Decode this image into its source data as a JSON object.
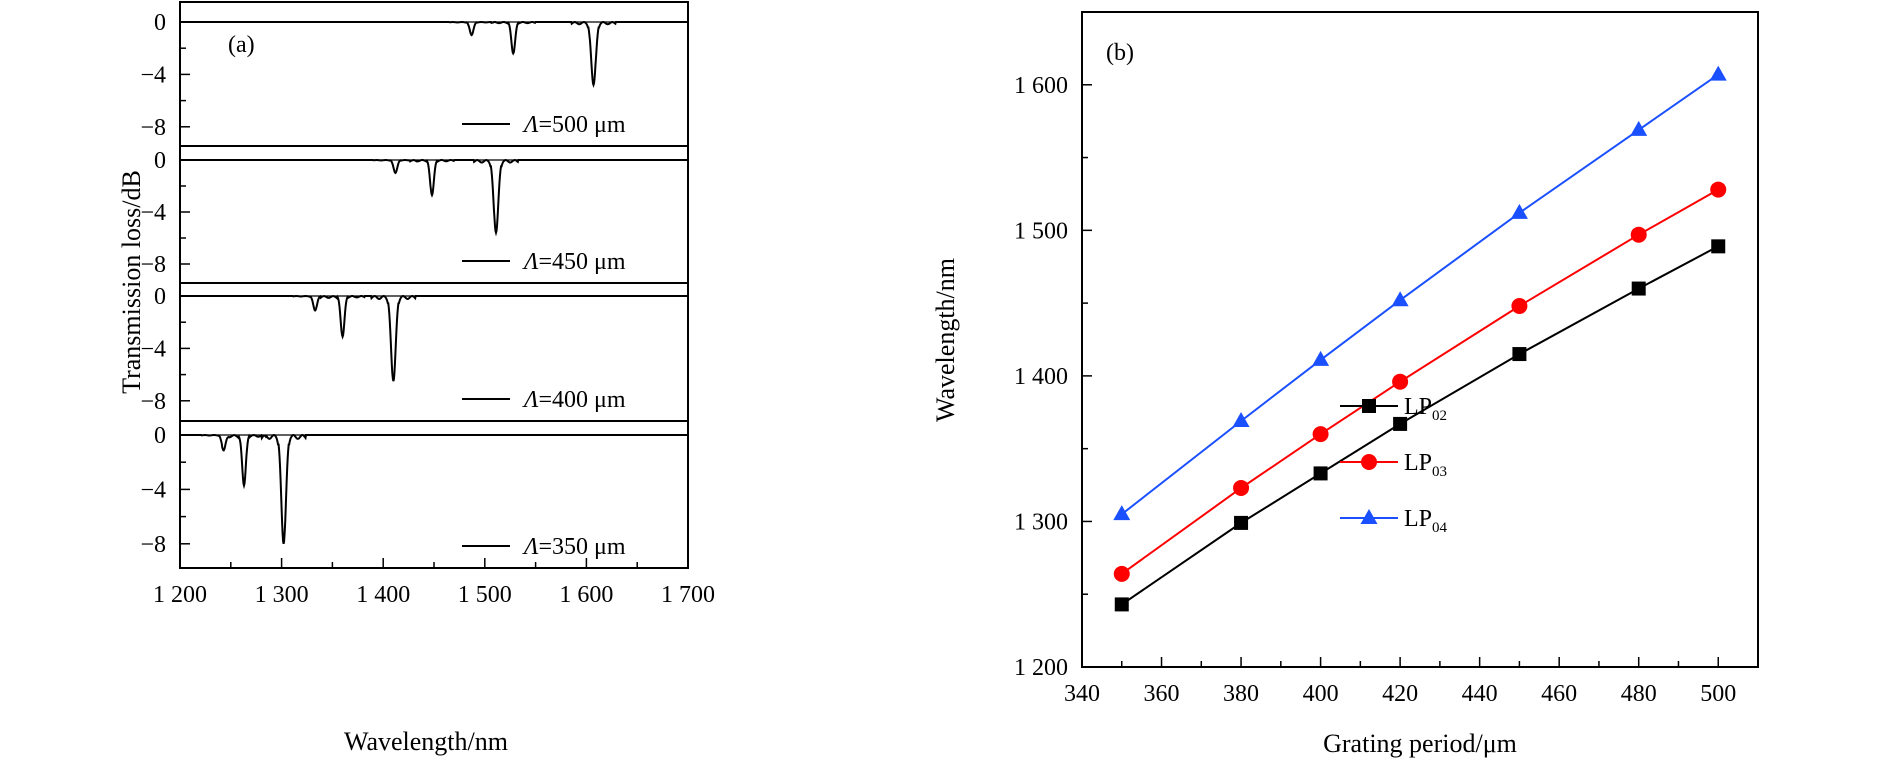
{
  "chart_data": [
    {
      "type": "line",
      "panel_label": "(a)",
      "xlabel": "Wavelength/nm",
      "ylabel": "Transmission loss/dB",
      "xlim": [
        1200,
        1700
      ],
      "xticks": [
        1200,
        1300,
        1400,
        1500,
        1600,
        1700
      ],
      "xtick_labels": [
        "1 200",
        "1 300",
        "1 400",
        "1 500",
        "1 600",
        "1 700"
      ],
      "ylim": [
        -9,
        1
      ],
      "yticks": [
        0,
        -4,
        -8
      ],
      "ytick_labels": [
        "0",
        "−4",
        "−8"
      ],
      "legend_prefix": "Λ",
      "legend_unit": "μm",
      "subplots": [
        {
          "name": "500",
          "label": "=500 μm",
          "dips": [
            {
              "x": 1487,
              "depth": -1.0
            },
            {
              "x": 1528,
              "depth": -2.4
            },
            {
              "x": 1607,
              "depth": -4.8
            }
          ]
        },
        {
          "name": "450",
          "label": "=450 μm",
          "dips": [
            {
              "x": 1412,
              "depth": -1.0
            },
            {
              "x": 1448,
              "depth": -2.7
            },
            {
              "x": 1511,
              "depth": -5.6
            }
          ]
        },
        {
          "name": "400",
          "label": "=400 μm",
          "dips": [
            {
              "x": 1333,
              "depth": -1.1
            },
            {
              "x": 1360,
              "depth": -3.1
            },
            {
              "x": 1410,
              "depth": -6.5
            }
          ]
        },
        {
          "name": "350",
          "label": "=350 μm",
          "dips": [
            {
              "x": 1243,
              "depth": -1.1
            },
            {
              "x": 1263,
              "depth": -3.7
            },
            {
              "x": 1302,
              "depth": -8.0
            }
          ]
        }
      ]
    },
    {
      "type": "line",
      "panel_label": "(b)",
      "xlabel": "Grating period/μm",
      "ylabel": "Wavelength/nm",
      "xlim": [
        340,
        510
      ],
      "ylim": [
        1200,
        1650
      ],
      "xticks": [
        340,
        360,
        380,
        400,
        420,
        440,
        460,
        480,
        500
      ],
      "xtick_labels": [
        "340",
        "360",
        "380",
        "400",
        "420",
        "440",
        "460",
        "480",
        "500"
      ],
      "yticks": [
        1200,
        1300,
        1400,
        1500,
        1600
      ],
      "ytick_labels": [
        "1 200",
        "1 300",
        "1 400",
        "1 500",
        "1 600"
      ],
      "legend_position": "lower-right",
      "x": [
        350,
        380,
        400,
        420,
        450,
        480,
        500
      ],
      "series": [
        {
          "name": "LP",
          "sub": "02",
          "color": "#000000",
          "marker": "square",
          "values": [
            1243,
            1299,
            1333,
            1367,
            1415,
            1460,
            1489
          ]
        },
        {
          "name": "LP",
          "sub": "03",
          "color": "#ff0000",
          "marker": "circle",
          "values": [
            1264,
            1323,
            1360,
            1396,
            1448,
            1497,
            1528
          ]
        },
        {
          "name": "LP",
          "sub": "04",
          "color": "#1a50ff",
          "marker": "triangle",
          "values": [
            1305,
            1369,
            1411,
            1452,
            1512,
            1569,
            1607
          ]
        }
      ]
    }
  ]
}
